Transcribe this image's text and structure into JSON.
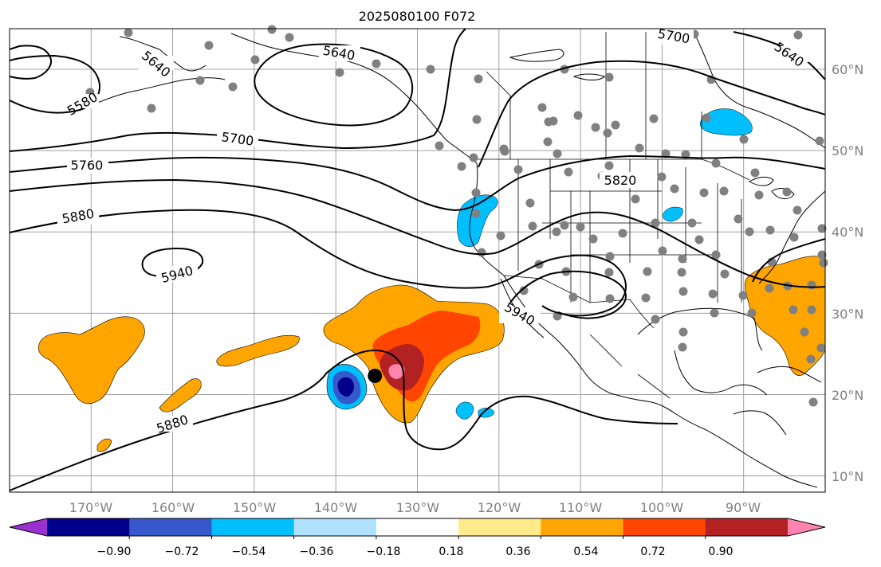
{
  "title": "2025080100 F072",
  "map": {
    "lon_range": [
      -180,
      -80
    ],
    "lat_range": [
      8,
      65
    ],
    "lat_ticks": [
      {
        "value": 10,
        "label": "10°N"
      },
      {
        "value": 20,
        "label": "20°N"
      },
      {
        "value": 30,
        "label": "30°N"
      },
      {
        "value": 40,
        "label": "40°N"
      },
      {
        "value": 50,
        "label": "50°N"
      },
      {
        "value": 60,
        "label": "60°N"
      }
    ],
    "lon_ticks": [
      {
        "value": -170,
        "label": "170°W"
      },
      {
        "value": -160,
        "label": "160°W"
      },
      {
        "value": -150,
        "label": "150°W"
      },
      {
        "value": -140,
        "label": "140°W"
      },
      {
        "value": -130,
        "label": "130°W"
      },
      {
        "value": -120,
        "label": "120°W"
      },
      {
        "value": -110,
        "label": "110°W"
      },
      {
        "value": -100,
        "label": "100°W"
      },
      {
        "value": -90,
        "label": "90°W"
      }
    ],
    "contour_labels": [
      "5580",
      "5640",
      "5640",
      "5640",
      "5700",
      "5700",
      "5760",
      "5820",
      "5880",
      "5880",
      "5940",
      "5940"
    ],
    "marker": {
      "name": "storm-center",
      "lon": -135.2,
      "lat": 22.3
    }
  },
  "colorbar": {
    "colors": [
      "#9b30d0",
      "#00008b",
      "#3658cc",
      "#00bfff",
      "#b0e2ff",
      "#ffffff",
      "#ffeb8a",
      "#ffa500",
      "#ff4500",
      "#b22222",
      "#ff85b0"
    ],
    "tick_labels": [
      "−0.90",
      "−0.72",
      "−0.54",
      "−0.36",
      "−0.18",
      "0.18",
      "0.36",
      "0.54",
      "0.72",
      "0.90"
    ]
  },
  "colors": {
    "grid": "#a0a0a0",
    "axis_label": "#808080",
    "station_dot": "#808080"
  }
}
